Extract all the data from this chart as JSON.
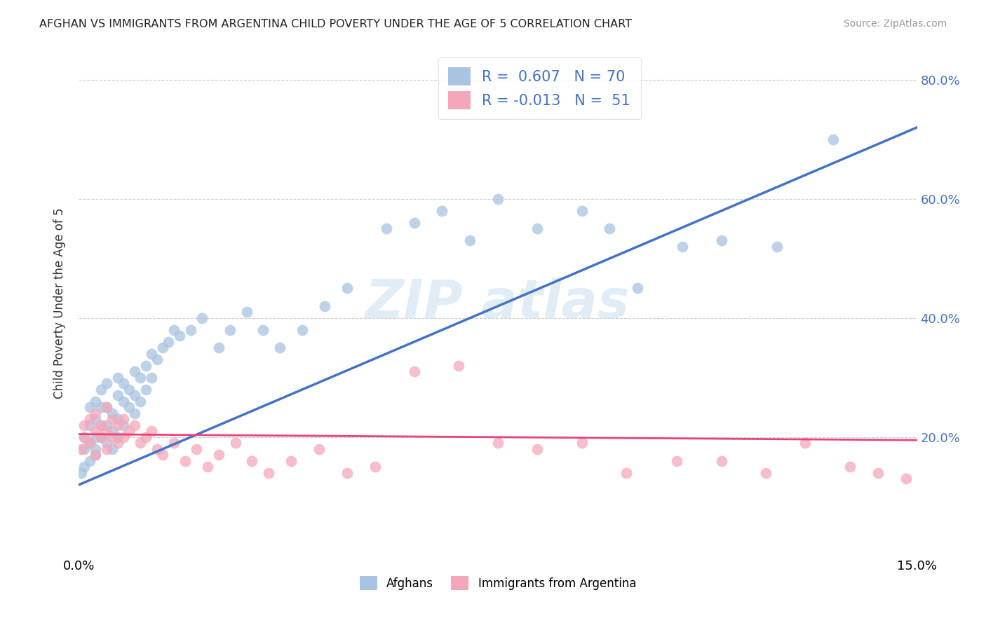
{
  "title": "AFGHAN VS IMMIGRANTS FROM ARGENTINA CHILD POVERTY UNDER THE AGE OF 5 CORRELATION CHART",
  "source": "Source: ZipAtlas.com",
  "ylabel": "Child Poverty Under the Age of 5",
  "x_min": 0.0,
  "x_max": 0.15,
  "y_min": 0.0,
  "y_max": 0.85,
  "x_ticks": [
    0.0,
    0.15
  ],
  "x_tick_labels": [
    "0.0%",
    "15.0%"
  ],
  "y_ticks": [
    0.2,
    0.4,
    0.6,
    0.8
  ],
  "y_tick_labels": [
    "20.0%",
    "40.0%",
    "60.0%",
    "80.0%"
  ],
  "legend_labels": [
    "Afghans",
    "Immigrants from Argentina"
  ],
  "afghan_color": "#a8c4e0",
  "argentina_color": "#f4a7b9",
  "afghan_line_color": "#4472c4",
  "argentina_line_color": "#e8427a",
  "R_afghan": 0.607,
  "N_afghan": 70,
  "R_argentina": -0.013,
  "N_argentina": 51,
  "background_color": "#ffffff",
  "grid_color": "#cccccc",
  "afghan_line_x0": 0.0,
  "afghan_line_y0": 0.12,
  "afghan_line_x1": 0.15,
  "afghan_line_y1": 0.72,
  "argentina_line_x0": 0.0,
  "argentina_line_y0": 0.205,
  "argentina_line_x1": 0.15,
  "argentina_line_y1": 0.195,
  "afghan_scatter_x": [
    0.0005,
    0.001,
    0.001,
    0.001,
    0.002,
    0.002,
    0.002,
    0.002,
    0.003,
    0.003,
    0.003,
    0.003,
    0.003,
    0.004,
    0.004,
    0.004,
    0.004,
    0.005,
    0.005,
    0.005,
    0.005,
    0.006,
    0.006,
    0.006,
    0.007,
    0.007,
    0.007,
    0.007,
    0.008,
    0.008,
    0.008,
    0.009,
    0.009,
    0.01,
    0.01,
    0.01,
    0.011,
    0.011,
    0.012,
    0.012,
    0.013,
    0.013,
    0.014,
    0.015,
    0.016,
    0.017,
    0.018,
    0.02,
    0.022,
    0.025,
    0.027,
    0.03,
    0.033,
    0.036,
    0.04,
    0.044,
    0.048,
    0.055,
    0.06,
    0.065,
    0.07,
    0.075,
    0.082,
    0.09,
    0.095,
    0.1,
    0.108,
    0.115,
    0.125,
    0.135
  ],
  "afghan_scatter_y": [
    0.14,
    0.18,
    0.15,
    0.2,
    0.16,
    0.19,
    0.22,
    0.25,
    0.17,
    0.2,
    0.23,
    0.18,
    0.26,
    0.2,
    0.22,
    0.25,
    0.28,
    0.19,
    0.22,
    0.25,
    0.29,
    0.18,
    0.21,
    0.24,
    0.2,
    0.23,
    0.27,
    0.3,
    0.22,
    0.26,
    0.29,
    0.25,
    0.28,
    0.24,
    0.27,
    0.31,
    0.26,
    0.3,
    0.28,
    0.32,
    0.3,
    0.34,
    0.33,
    0.35,
    0.36,
    0.38,
    0.37,
    0.38,
    0.4,
    0.35,
    0.38,
    0.41,
    0.38,
    0.35,
    0.38,
    0.42,
    0.45,
    0.55,
    0.56,
    0.58,
    0.53,
    0.6,
    0.55,
    0.58,
    0.55,
    0.45,
    0.52,
    0.53,
    0.52,
    0.7
  ],
  "argentina_scatter_x": [
    0.0005,
    0.001,
    0.001,
    0.002,
    0.002,
    0.003,
    0.003,
    0.003,
    0.004,
    0.004,
    0.005,
    0.005,
    0.005,
    0.006,
    0.006,
    0.007,
    0.007,
    0.008,
    0.008,
    0.009,
    0.01,
    0.011,
    0.012,
    0.013,
    0.014,
    0.015,
    0.017,
    0.019,
    0.021,
    0.023,
    0.025,
    0.028,
    0.031,
    0.034,
    0.038,
    0.043,
    0.048,
    0.053,
    0.06,
    0.068,
    0.075,
    0.082,
    0.09,
    0.098,
    0.107,
    0.115,
    0.123,
    0.13,
    0.138,
    0.143,
    0.148
  ],
  "argentina_scatter_y": [
    0.18,
    0.2,
    0.22,
    0.19,
    0.23,
    0.17,
    0.21,
    0.24,
    0.2,
    0.22,
    0.25,
    0.18,
    0.21,
    0.2,
    0.23,
    0.19,
    0.22,
    0.2,
    0.23,
    0.21,
    0.22,
    0.19,
    0.2,
    0.21,
    0.18,
    0.17,
    0.19,
    0.16,
    0.18,
    0.15,
    0.17,
    0.19,
    0.16,
    0.14,
    0.16,
    0.18,
    0.14,
    0.15,
    0.31,
    0.32,
    0.19,
    0.18,
    0.19,
    0.14,
    0.16,
    0.16,
    0.14,
    0.19,
    0.15,
    0.14,
    0.13
  ]
}
